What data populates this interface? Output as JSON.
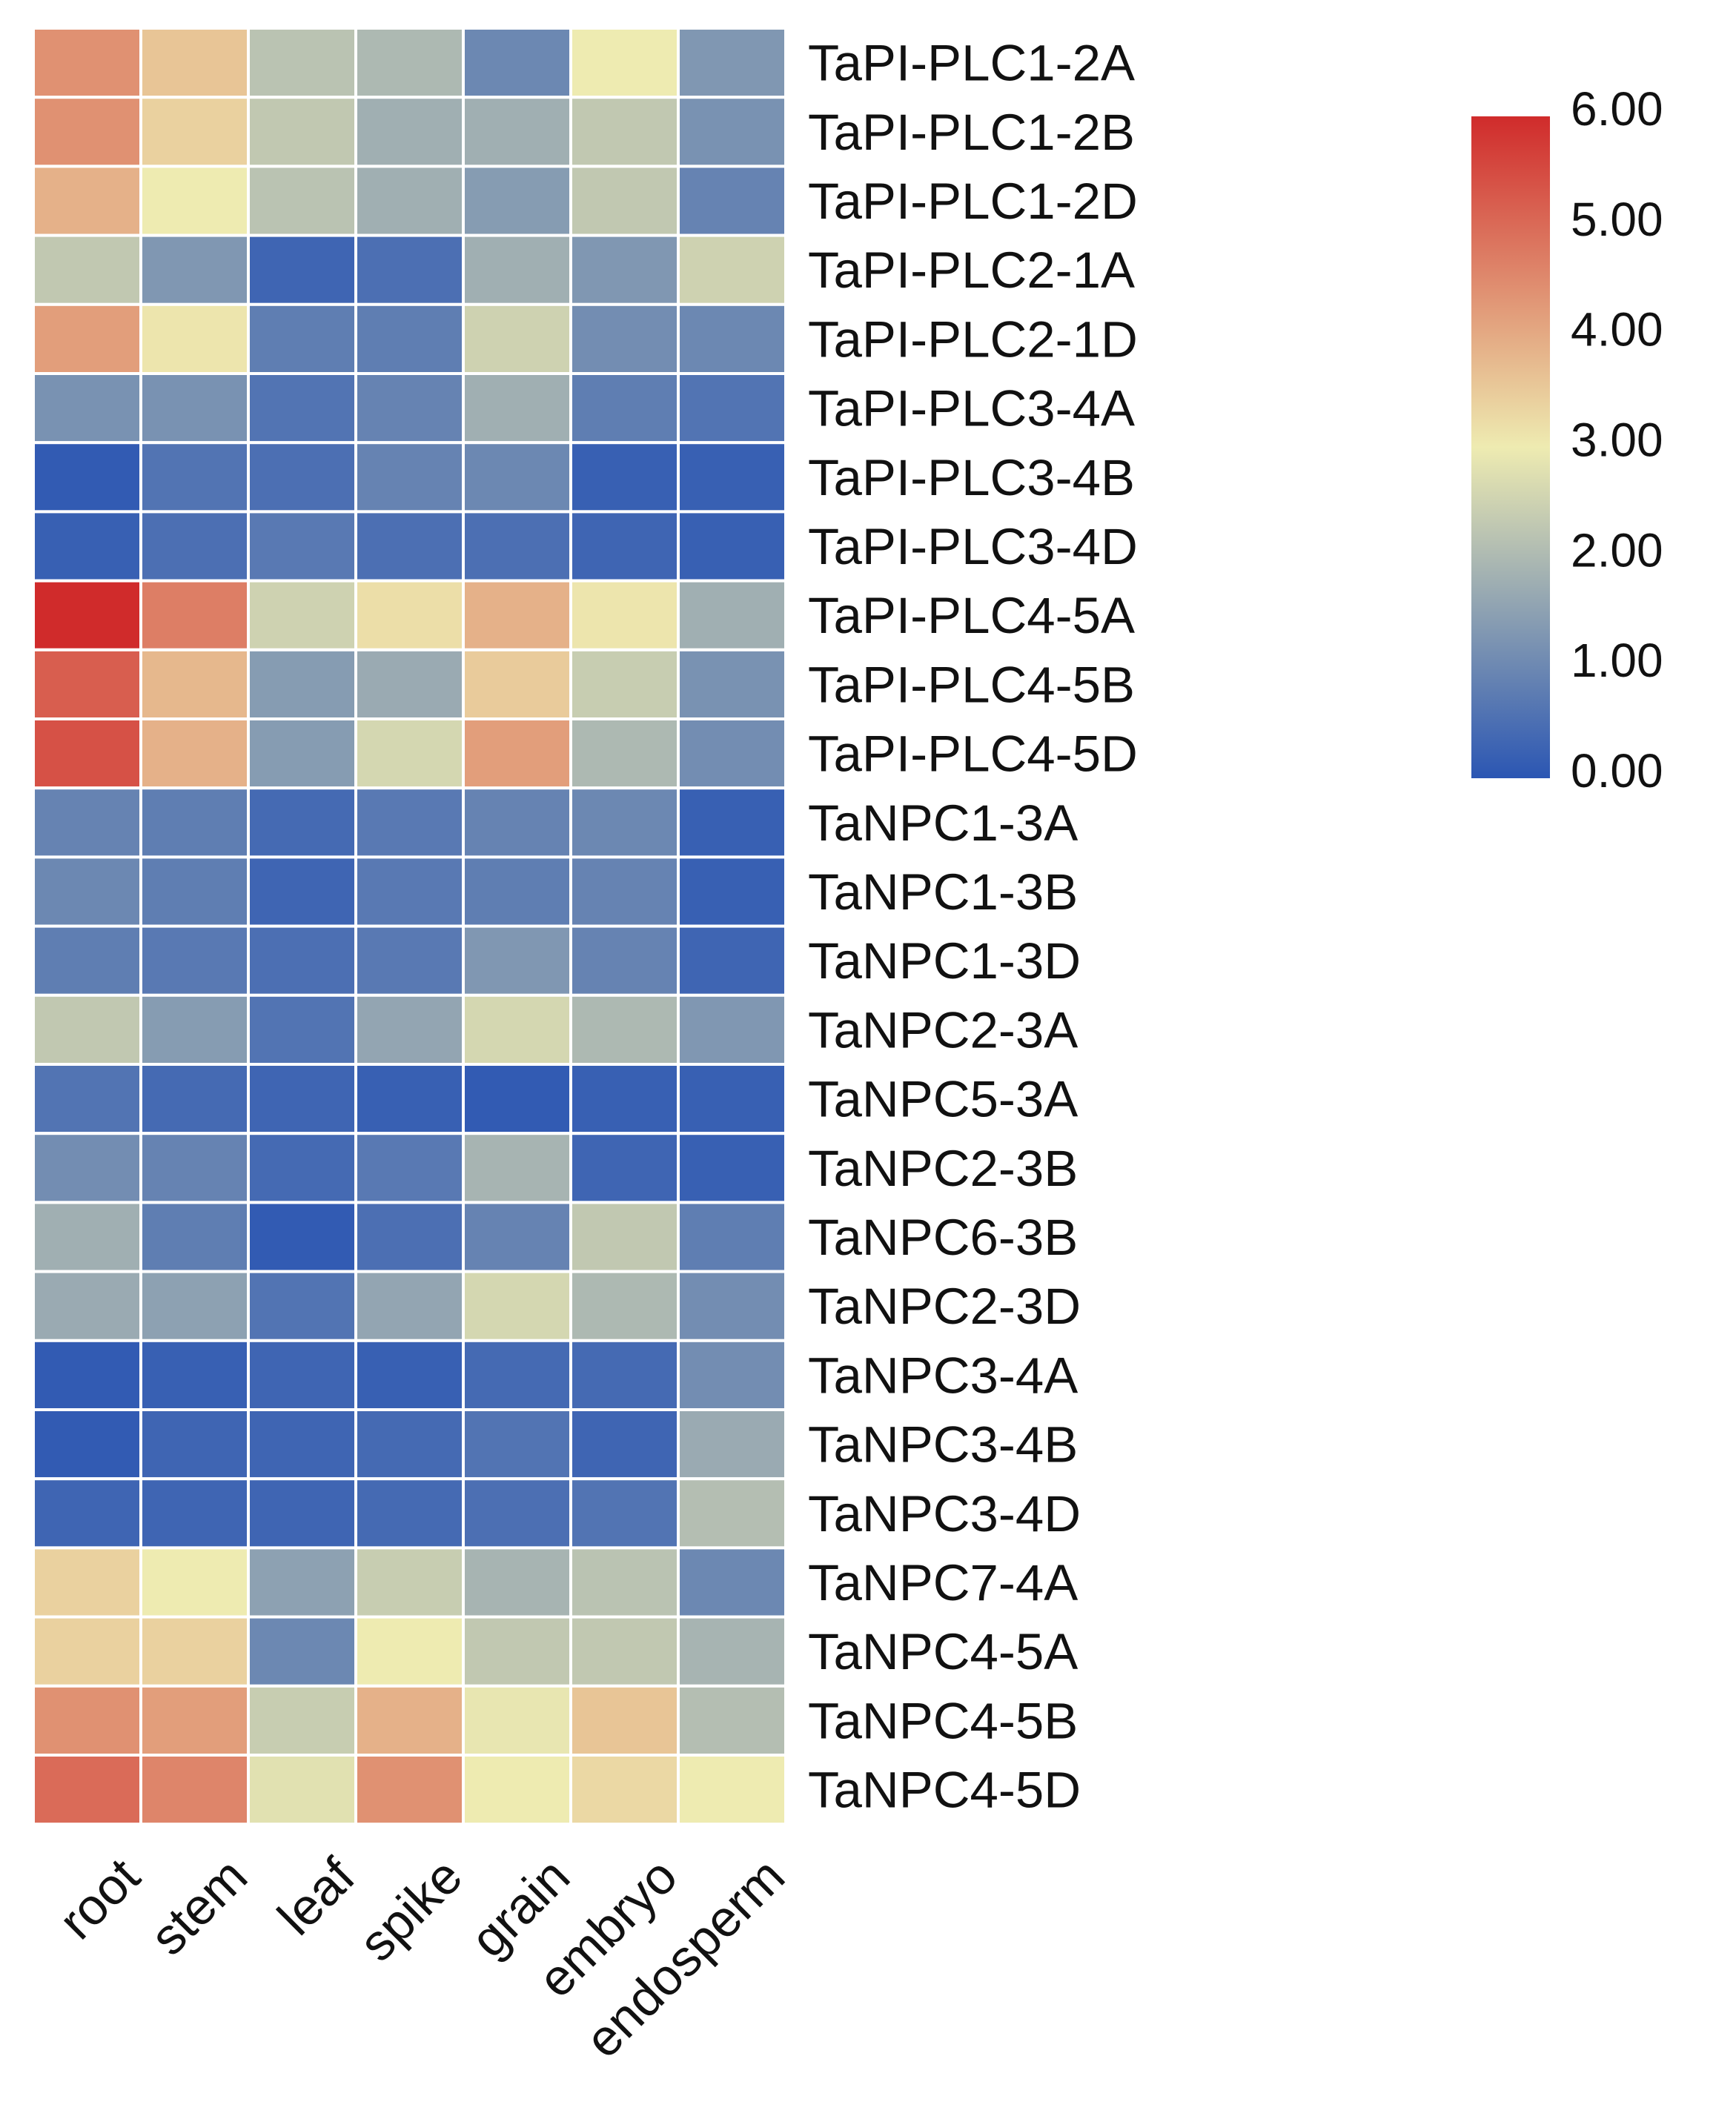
{
  "chart_data": {
    "type": "heatmap",
    "title": "",
    "columns": [
      "root",
      "stem",
      "leaf",
      "spike",
      "grain",
      "embryo",
      "endosperm"
    ],
    "rows": [
      "TaPI-PLC1-2A",
      "TaPI-PLC1-2B",
      "TaPI-PLC1-2D",
      "TaPI-PLC2-1A",
      "TaPI-PLC2-1D",
      "TaPI-PLC3-4A",
      "TaPI-PLC3-4B",
      "TaPI-PLC3-4D",
      "TaPI-PLC4-5A",
      "TaPI-PLC4-5B",
      "TaPI-PLC4-5D",
      "TaNPC1-3A",
      "TaNPC1-3B",
      "TaNPC1-3D",
      "TaNPC2-3A",
      "TaNPC5-3A",
      "TaNPC2-3B",
      "TaNPC6-3B",
      "TaNPC2-3D",
      "TaNPC3-4A",
      "TaNPC3-4B",
      "TaNPC3-4D",
      "TaNPC7-4A",
      "TaNPC4-5A",
      "TaNPC4-5B",
      "TaNPC4-5D"
    ],
    "values": [
      [
        4.4,
        3.6,
        2.2,
        2.0,
        1.0,
        3.0,
        1.3
      ],
      [
        4.4,
        3.4,
        2.3,
        1.8,
        1.8,
        2.3,
        1.2
      ],
      [
        3.9,
        3.0,
        2.2,
        1.8,
        1.4,
        2.3,
        0.9
      ],
      [
        2.3,
        1.3,
        0.3,
        0.5,
        1.8,
        1.3,
        2.5
      ],
      [
        4.2,
        3.1,
        0.8,
        0.8,
        2.5,
        1.1,
        1.0
      ],
      [
        1.2,
        1.2,
        0.6,
        0.9,
        1.8,
        0.8,
        0.6
      ],
      [
        0.1,
        0.6,
        0.5,
        0.9,
        1.0,
        0.2,
        0.2
      ],
      [
        0.2,
        0.5,
        0.7,
        0.5,
        0.5,
        0.3,
        0.2
      ],
      [
        6.0,
        4.7,
        2.5,
        3.2,
        3.9,
        3.1,
        1.8
      ],
      [
        5.2,
        3.8,
        1.4,
        1.7,
        3.5,
        2.4,
        1.2
      ],
      [
        5.4,
        3.9,
        1.4,
        2.6,
        4.2,
        2.0,
        1.1
      ],
      [
        0.9,
        0.8,
        0.4,
        0.7,
        0.9,
        1.0,
        0.2
      ],
      [
        1.0,
        0.8,
        0.3,
        0.7,
        0.8,
        0.9,
        0.2
      ],
      [
        0.8,
        0.7,
        0.5,
        0.7,
        1.3,
        0.9,
        0.3
      ],
      [
        2.3,
        1.4,
        0.6,
        1.6,
        2.6,
        2.0,
        1.3
      ],
      [
        0.6,
        0.4,
        0.3,
        0.2,
        0.1,
        0.2,
        0.2
      ],
      [
        1.1,
        0.9,
        0.4,
        0.7,
        1.9,
        0.3,
        0.2
      ],
      [
        1.8,
        0.8,
        0.1,
        0.5,
        0.9,
        2.3,
        0.8
      ],
      [
        1.7,
        1.5,
        0.6,
        1.6,
        2.6,
        2.0,
        1.1
      ],
      [
        0.1,
        0.2,
        0.3,
        0.2,
        0.4,
        0.4,
        1.1
      ],
      [
        0.1,
        0.3,
        0.3,
        0.4,
        0.6,
        0.3,
        1.7
      ],
      [
        0.3,
        0.3,
        0.3,
        0.4,
        0.5,
        0.6,
        2.1
      ],
      [
        3.4,
        3.0,
        1.5,
        2.4,
        1.9,
        2.2,
        1.0
      ],
      [
        3.4,
        3.4,
        1.0,
        3.0,
        2.3,
        2.3,
        1.9
      ],
      [
        4.4,
        4.2,
        2.4,
        3.9,
        2.9,
        3.6,
        2.1
      ],
      [
        5.0,
        4.6,
        2.8,
        4.4,
        3.0,
        3.3,
        3.0
      ]
    ],
    "colorbar": {
      "min": 0,
      "max": 6,
      "ticks": [
        "6.00",
        "5.00",
        "4.00",
        "3.00",
        "2.00",
        "1.00",
        "0.00"
      ],
      "tick_values": [
        6,
        5,
        4,
        3,
        2,
        1,
        0
      ],
      "colors": [
        "#2b56b3",
        "#eeebb1",
        "#d02b2b"
      ],
      "placement": "top-right"
    },
    "xlabel": "",
    "ylabel": "",
    "grid_line_color": "#ffffff"
  }
}
